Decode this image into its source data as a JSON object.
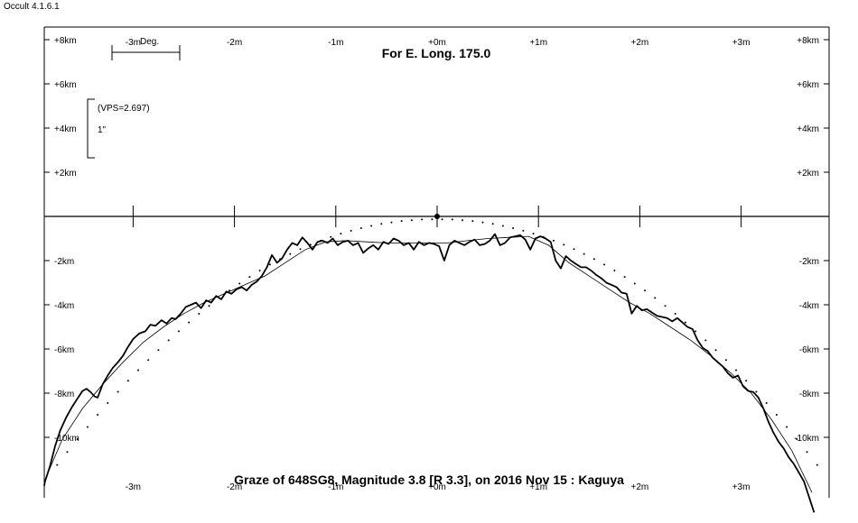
{
  "app": {
    "title": "Occult 4.1.6.1"
  },
  "chart_data": {
    "type": "line",
    "title": "For E. Long. 175.0",
    "caption": "Graze of  648SG8,  Magnitude 3.8 [R 3.3],  on 2016 Nov 15  :  Kaguya",
    "x_unit": "minutes",
    "y_unit": "km",
    "xlim": [
      -3.9,
      3.9
    ],
    "ylim": [
      -12.8,
      8.3
    ],
    "x_ticks": [
      -3,
      -2,
      -1,
      0,
      1,
      2,
      3
    ],
    "x_tick_labels_top": [
      "-3m",
      "-2m",
      "-1m",
      "+0m",
      "+1m",
      "+2m",
      "+3m"
    ],
    "x_tick_labels_bottom": [
      "-3m",
      "-2m",
      "-1m",
      "+0m",
      "+1m",
      "+2m",
      "+3m"
    ],
    "y_ticks": [
      8,
      6,
      4,
      2,
      -2,
      -4,
      -6,
      -8,
      -10
    ],
    "y_tick_labels": [
      "+8km",
      "+6km",
      "+4km",
      "+2km",
      "-2km",
      "-4km",
      "-6km",
      "-8km",
      "-10km"
    ],
    "scale_bar": {
      "label": "Deg."
    },
    "vertical_scale": {
      "vps_label": "(VPS=2.697)",
      "unit_label": "1\""
    },
    "reference_point": {
      "x": 0,
      "y": 0
    },
    "series": [
      {
        "role": "profile",
        "style": "thick",
        "x": [
          -3.9,
          -3.87,
          -3.82,
          -3.77,
          -3.72,
          -3.66,
          -3.6,
          -3.55,
          -3.5,
          -3.46,
          -3.42,
          -3.38,
          -3.35,
          -3.3,
          -3.25,
          -3.2,
          -3.15,
          -3.1,
          -3.05,
          -3.0,
          -2.94,
          -2.88,
          -2.83,
          -2.78,
          -2.72,
          -2.67,
          -2.62,
          -2.58,
          -2.53,
          -2.48,
          -2.43,
          -2.38,
          -2.33,
          -2.28,
          -2.23,
          -2.18,
          -2.13,
          -2.08,
          -2.03,
          -1.98,
          -1.93,
          -1.88,
          -1.83,
          -1.78,
          -1.73,
          -1.68,
          -1.63,
          -1.58,
          -1.53,
          -1.48,
          -1.43,
          -1.38,
          -1.33,
          -1.28,
          -1.23,
          -1.18,
          -1.13,
          -1.08,
          -1.03,
          -0.98,
          -0.93,
          -0.88,
          -0.83,
          -0.78,
          -0.73,
          -0.68,
          -0.63,
          -0.58,
          -0.53,
          -0.48,
          -0.43,
          -0.38,
          -0.33,
          -0.28,
          -0.23,
          -0.18,
          -0.13,
          -0.08,
          -0.03,
          0.02,
          0.07,
          0.12,
          0.17,
          0.22,
          0.27,
          0.32,
          0.37,
          0.42,
          0.47,
          0.52,
          0.57,
          0.62,
          0.67,
          0.72,
          0.77,
          0.82,
          0.87,
          0.92,
          0.97,
          1.02,
          1.07,
          1.12,
          1.17,
          1.22,
          1.27,
          1.32,
          1.37,
          1.42,
          1.47,
          1.52,
          1.57,
          1.62,
          1.67,
          1.72,
          1.77,
          1.82,
          1.87,
          1.92,
          1.97,
          2.02,
          2.07,
          2.12,
          2.17,
          2.22,
          2.27,
          2.32,
          2.37,
          2.42,
          2.47,
          2.52,
          2.57,
          2.62,
          2.67,
          2.72,
          2.77,
          2.82,
          2.87,
          2.92,
          2.97,
          3.02,
          3.07,
          3.12,
          3.17,
          3.22,
          3.27,
          3.32,
          3.37,
          3.42,
          3.47,
          3.52,
          3.57,
          3.62,
          3.67,
          3.72
        ],
        "y": [
          -12.2,
          -12.0,
          -11.3,
          -10.4,
          -9.7,
          -9.1,
          -8.6,
          -8.25,
          -7.9,
          -7.8,
          -7.95,
          -8.15,
          -8.2,
          -7.6,
          -7.2,
          -6.85,
          -6.6,
          -6.3,
          -5.9,
          -5.55,
          -5.3,
          -5.2,
          -4.9,
          -4.95,
          -4.7,
          -4.85,
          -4.6,
          -4.65,
          -4.4,
          -4.1,
          -4.0,
          -3.9,
          -4.15,
          -3.8,
          -3.9,
          -3.6,
          -3.75,
          -3.4,
          -3.5,
          -3.3,
          -3.2,
          -3.35,
          -3.1,
          -2.95,
          -2.7,
          -2.3,
          -1.75,
          -2.1,
          -1.9,
          -1.5,
          -1.2,
          -1.3,
          -0.95,
          -1.2,
          -1.5,
          -1.15,
          -1.1,
          -1.2,
          -1.0,
          -1.3,
          -1.15,
          -1.1,
          -1.3,
          -1.2,
          -1.65,
          -1.45,
          -1.3,
          -1.5,
          -1.15,
          -1.25,
          -1.0,
          -1.1,
          -1.3,
          -1.2,
          -1.5,
          -1.15,
          -1.3,
          -1.2,
          -1.25,
          -1.35,
          -2.0,
          -1.3,
          -1.1,
          -1.2,
          -1.3,
          -1.15,
          -1.05,
          -1.3,
          -1.25,
          -1.1,
          -0.8,
          -1.3,
          -1.2,
          -0.95,
          -0.9,
          -0.85,
          -1.05,
          -1.5,
          -1.0,
          -0.9,
          -1.0,
          -1.15,
          -2.0,
          -2.35,
          -1.8,
          -2.0,
          -2.15,
          -2.3,
          -2.3,
          -2.45,
          -2.65,
          -2.8,
          -3.0,
          -3.1,
          -3.2,
          -3.45,
          -3.5,
          -4.4,
          -4.05,
          -4.25,
          -4.2,
          -4.35,
          -4.5,
          -4.55,
          -4.6,
          -4.75,
          -4.6,
          -4.8,
          -5.0,
          -5.1,
          -5.6,
          -5.95,
          -6.1,
          -6.4,
          -6.6,
          -6.8,
          -7.1,
          -7.3,
          -7.2,
          -7.7,
          -7.9,
          -7.95,
          -8.2,
          -8.7,
          -9.3,
          -9.8,
          -10.2,
          -10.5,
          -10.9,
          -11.2,
          -11.6,
          -12.0,
          -12.7,
          -13.4
        ]
      },
      {
        "role": "smoothed-profile",
        "style": "thin",
        "x": [
          -3.9,
          -3.7,
          -3.5,
          -3.3,
          -3.1,
          -2.9,
          -2.7,
          -2.5,
          -2.3,
          -2.1,
          -1.9,
          -1.7,
          -1.5,
          -1.3,
          -1.1,
          -0.9,
          -0.7,
          -0.5,
          -0.3,
          -0.1,
          0.1,
          0.3,
          0.5,
          0.7,
          0.9,
          1.1,
          1.3,
          1.5,
          1.7,
          1.9,
          2.1,
          2.3,
          2.5,
          2.7,
          2.9,
          3.1,
          3.3,
          3.5,
          3.7
        ],
        "y": [
          -12.0,
          -10.1,
          -8.7,
          -7.6,
          -6.6,
          -5.7,
          -5.0,
          -4.4,
          -3.9,
          -3.5,
          -3.1,
          -2.7,
          -2.1,
          -1.5,
          -1.15,
          -1.1,
          -1.15,
          -1.2,
          -1.2,
          -1.2,
          -1.2,
          -1.1,
          -1.0,
          -0.95,
          -0.9,
          -1.3,
          -2.1,
          -2.7,
          -3.3,
          -3.9,
          -4.4,
          -5.0,
          -5.6,
          -6.3,
          -7.1,
          -8.0,
          -9.2,
          -10.6,
          -12.5
        ]
      },
      {
        "role": "mean-limb",
        "style": "dotted",
        "x": [
          -3.75,
          -3.65,
          -3.55,
          -3.45,
          -3.35,
          -3.25,
          -3.15,
          -3.05,
          -2.95,
          -2.85,
          -2.75,
          -2.65,
          -2.55,
          -2.45,
          -2.35,
          -2.25,
          -2.15,
          -2.05,
          -1.95,
          -1.85,
          -1.75,
          -1.65,
          -1.55,
          -1.45,
          -1.35,
          -1.25,
          -1.15,
          -1.05,
          -0.95,
          -0.85,
          -0.75,
          -0.65,
          -0.55,
          -0.45,
          -0.35,
          -0.25,
          -0.15,
          -0.05,
          0.05,
          0.15,
          0.25,
          0.35,
          0.45,
          0.55,
          0.65,
          0.75,
          0.85,
          0.95,
          1.05,
          1.15,
          1.25,
          1.35,
          1.45,
          1.55,
          1.65,
          1.75,
          1.85,
          1.95,
          2.05,
          2.15,
          2.25,
          2.35,
          2.45,
          2.55,
          2.65,
          2.75,
          2.85,
          2.95,
          3.05,
          3.15,
          3.25,
          3.35,
          3.45,
          3.55,
          3.65,
          3.75
        ],
        "y": [
          -11.25,
          -10.66,
          -10.08,
          -9.53,
          -8.98,
          -8.45,
          -7.94,
          -7.44,
          -6.96,
          -6.5,
          -6.05,
          -5.61,
          -5.2,
          -4.8,
          -4.41,
          -4.05,
          -3.69,
          -3.36,
          -3.04,
          -2.74,
          -2.45,
          -2.18,
          -1.93,
          -1.7,
          -1.48,
          -1.28,
          -1.1,
          -0.93,
          -0.78,
          -0.65,
          -0.53,
          -0.43,
          -0.34,
          -0.27,
          -0.21,
          -0.17,
          -0.14,
          -0.13,
          -0.13,
          -0.14,
          -0.17,
          -0.21,
          -0.27,
          -0.34,
          -0.43,
          -0.53,
          -0.65,
          -0.78,
          -0.93,
          -1.1,
          -1.28,
          -1.48,
          -1.7,
          -1.93,
          -2.18,
          -2.45,
          -2.74,
          -3.04,
          -3.36,
          -3.69,
          -4.05,
          -4.41,
          -4.8,
          -5.2,
          -5.61,
          -6.05,
          -6.5,
          -6.96,
          -7.44,
          -7.94,
          -8.45,
          -8.98,
          -9.53,
          -10.08,
          -10.66,
          -11.25
        ]
      }
    ],
    "grid": false,
    "colors": {
      "foreground": "#000000",
      "background": "#ffffff"
    }
  }
}
